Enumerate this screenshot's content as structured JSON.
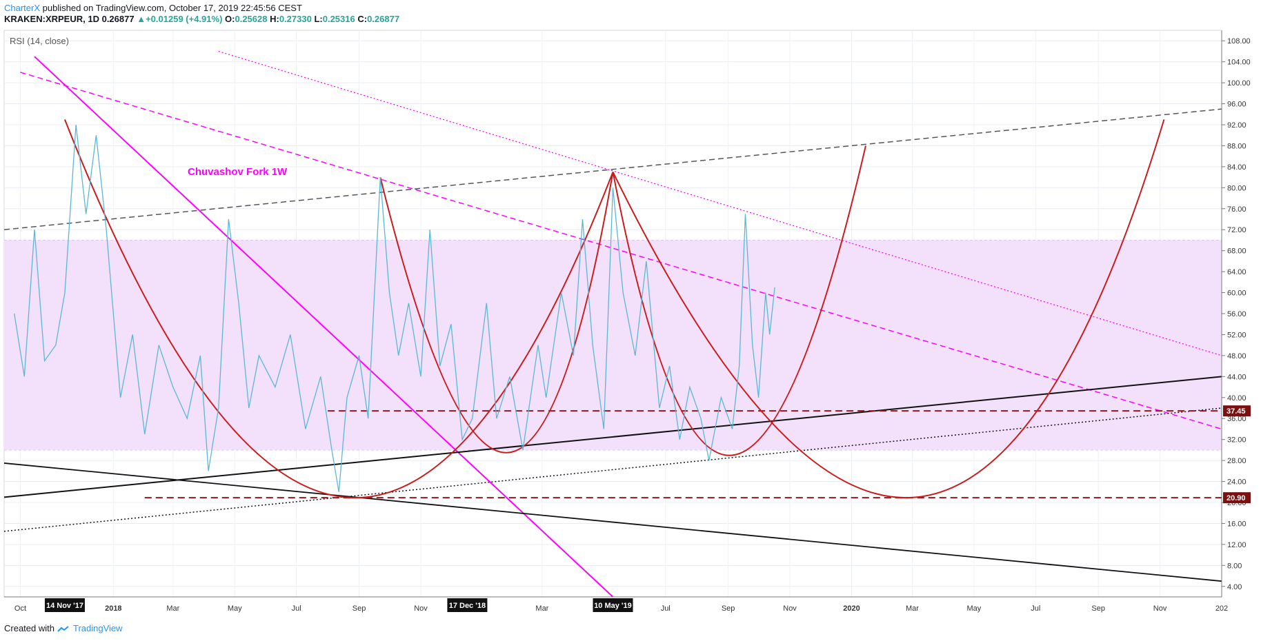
{
  "header": {
    "author": "CharterX",
    "published_text": " published on TradingView.com, October 17, 2019 22:45:56 CEST",
    "symbol": "KRAKEN:XRPEUR, 1D",
    "last": "0.26877",
    "change": "+0.01259 (+4.91%)",
    "o_label": "O:",
    "o_val": "0.25628",
    "h_label": "H:",
    "h_val": "0.27330",
    "l_label": "L:",
    "l_val": "0.25316",
    "c_label": "C:",
    "c_val": "0.26877"
  },
  "footer": {
    "created_with": "Created with",
    "brand": "TradingView"
  },
  "colors": {
    "rsi_line": "#5ab8d6",
    "band_fill": "#f3e0fb",
    "magenta": "#ff00ff",
    "dark_red": "#cc1a1a",
    "level_line": "#8b1a1a",
    "gray_dash": "#555555"
  },
  "chart_data": {
    "type": "line",
    "indicator_label": "RSI (14, close)",
    "annotation": "Chuvashov Fork 1W",
    "y_ticks": [
      "108.00",
      "104.00",
      "100.00",
      "96.00",
      "92.00",
      "88.00",
      "84.00",
      "80.00",
      "76.00",
      "72.00",
      "68.00",
      "64.00",
      "60.00",
      "56.00",
      "52.00",
      "48.00",
      "44.00",
      "40.00",
      "36.00",
      "32.00",
      "28.00",
      "24.00",
      "20.00",
      "16.00",
      "12.00",
      "8.00",
      "4.00"
    ],
    "ylim": [
      2,
      110
    ],
    "x_labels": [
      "Oct",
      "2018",
      "Mar",
      "May",
      "Jul",
      "Sep",
      "Nov",
      "Mar",
      "Jul",
      "Sep",
      "Nov",
      "2020",
      "Mar",
      "May",
      "Jul",
      "Sep",
      "Nov",
      "202"
    ],
    "date_badges": [
      "14 Nov '17",
      "17 Dec '18",
      "10 May '19"
    ],
    "level_badges": [
      {
        "label": "37.45",
        "value": 37.45
      },
      {
        "label": "20.90",
        "value": 20.9
      }
    ],
    "band": [
      30,
      70
    ],
    "series": [
      {
        "points": [
          [
            "2017-09-25",
            56
          ],
          [
            "2017-10-05",
            44
          ],
          [
            "2017-10-15",
            72
          ],
          [
            "2017-10-25",
            47
          ],
          [
            "2017-11-05",
            50
          ],
          [
            "2017-11-14",
            60
          ],
          [
            "2017-11-25",
            92
          ],
          [
            "2017-12-05",
            75
          ],
          [
            "2017-12-15",
            90
          ],
          [
            "2017-12-25",
            72
          ],
          [
            "2018-01-08",
            40
          ],
          [
            "2018-01-20",
            52
          ],
          [
            "2018-02-01",
            33
          ],
          [
            "2018-02-15",
            50
          ],
          [
            "2018-03-01",
            42
          ],
          [
            "2018-03-15",
            36
          ],
          [
            "2018-03-28",
            48
          ],
          [
            "2018-04-05",
            26
          ],
          [
            "2018-04-15",
            38
          ],
          [
            "2018-04-25",
            74
          ],
          [
            "2018-05-05",
            58
          ],
          [
            "2018-05-15",
            38
          ],
          [
            "2018-05-25",
            48
          ],
          [
            "2018-06-10",
            42
          ],
          [
            "2018-06-25",
            52
          ],
          [
            "2018-07-10",
            34
          ],
          [
            "2018-07-25",
            44
          ],
          [
            "2018-08-05",
            30
          ],
          [
            "2018-08-12",
            22
          ],
          [
            "2018-08-20",
            40
          ],
          [
            "2018-09-01",
            48
          ],
          [
            "2018-09-10",
            36
          ],
          [
            "2018-09-22",
            82
          ],
          [
            "2018-10-01",
            60
          ],
          [
            "2018-10-10",
            48
          ],
          [
            "2018-10-20",
            58
          ],
          [
            "2018-11-01",
            44
          ],
          [
            "2018-11-10",
            72
          ],
          [
            "2018-11-20",
            46
          ],
          [
            "2018-12-01",
            54
          ],
          [
            "2018-12-12",
            32
          ],
          [
            "2018-12-22",
            36
          ],
          [
            "2019-01-05",
            58
          ],
          [
            "2019-01-15",
            36
          ],
          [
            "2019-01-28",
            44
          ],
          [
            "2019-02-10",
            30
          ],
          [
            "2019-02-25",
            50
          ],
          [
            "2019-03-05",
            40
          ],
          [
            "2019-03-20",
            60
          ],
          [
            "2019-04-01",
            48
          ],
          [
            "2019-04-10",
            74
          ],
          [
            "2019-04-20",
            50
          ],
          [
            "2019-05-01",
            34
          ],
          [
            "2019-05-10",
            80
          ],
          [
            "2019-05-20",
            60
          ],
          [
            "2019-06-01",
            48
          ],
          [
            "2019-06-12",
            66
          ],
          [
            "2019-06-25",
            38
          ],
          [
            "2019-07-05",
            46
          ],
          [
            "2019-07-15",
            32
          ],
          [
            "2019-07-25",
            42
          ],
          [
            "2019-08-05",
            36
          ],
          [
            "2019-08-13",
            28
          ],
          [
            "2019-08-25",
            40
          ],
          [
            "2019-09-05",
            34
          ],
          [
            "2019-09-12",
            46
          ],
          [
            "2019-09-18",
            75
          ],
          [
            "2019-09-25",
            50
          ],
          [
            "2019-10-01",
            40
          ],
          [
            "2019-10-08",
            60
          ],
          [
            "2019-10-12",
            52
          ],
          [
            "2019-10-17",
            61
          ]
        ]
      }
    ]
  }
}
